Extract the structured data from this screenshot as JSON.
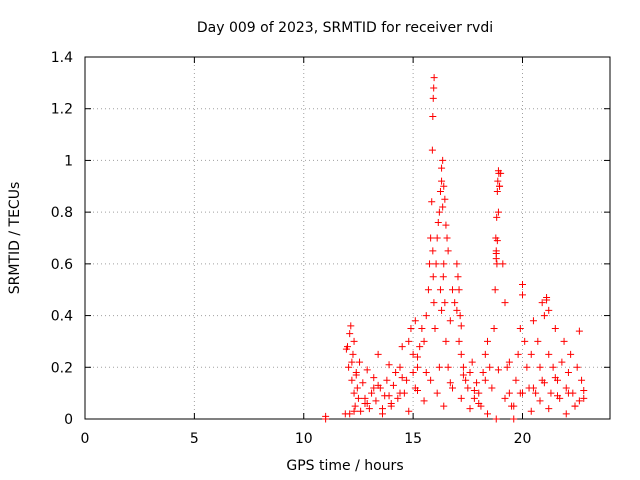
{
  "chart_data": {
    "type": "scatter",
    "title": "Day 009 of 2023, SRMTID for receiver rvdi",
    "xlabel": "GPS time / hours",
    "ylabel": "SRMTID / TECUs",
    "xlim": [
      0,
      24
    ],
    "ylim": [
      0,
      1.4
    ],
    "xticks": [
      0,
      5,
      10,
      15,
      20
    ],
    "yticks": [
      0,
      0.2,
      0.4,
      0.6,
      0.8,
      1.0,
      1.2,
      1.4
    ],
    "xtick_labels": [
      "0",
      "5",
      "10",
      "15",
      "20"
    ],
    "ytick_labels": [
      "0",
      "0.2",
      "0.4",
      "0.6",
      "0.8",
      "1",
      "1.2",
      "1.4"
    ],
    "grid": true,
    "marker": "+",
    "color": "#ff0000",
    "series": [
      {
        "name": "SRMTID",
        "x": [
          11.0,
          11.0,
          11.9,
          11.95,
          12.0,
          12.05,
          12.1,
          12.15,
          12.2,
          12.25,
          12.3,
          12.35,
          12.4,
          12.45,
          12.5,
          12.55,
          12.6,
          12.7,
          12.8,
          12.9,
          13.0,
          13.1,
          13.2,
          13.3,
          13.4,
          13.5,
          13.6,
          13.7,
          13.8,
          13.9,
          14.0,
          14.1,
          14.2,
          14.3,
          14.4,
          14.5,
          14.6,
          14.7,
          14.8,
          14.9,
          15.0,
          15.1,
          15.2,
          15.3,
          15.4,
          15.5,
          15.6,
          15.7,
          15.75,
          15.8,
          15.85,
          15.9,
          15.92,
          15.95,
          16.0,
          16.05,
          16.1,
          16.15,
          16.2,
          16.25,
          16.3,
          16.35,
          16.4,
          16.45,
          16.5,
          16.6,
          16.7,
          16.8,
          16.9,
          17.0,
          17.1,
          17.2,
          17.3,
          17.4,
          17.5,
          17.6,
          17.7,
          17.8,
          17.9,
          18.0,
          18.1,
          18.2,
          18.3,
          18.4,
          18.5,
          18.6,
          18.7,
          18.75,
          18.8,
          18.85,
          18.9,
          18.95,
          19.0,
          19.1,
          19.2,
          19.3,
          19.4,
          19.5,
          19.6,
          19.7,
          19.8,
          19.9,
          20.0,
          20.1,
          20.2,
          20.3,
          20.4,
          20.5,
          20.6,
          20.7,
          20.8,
          20.9,
          21.0,
          21.1,
          21.2,
          21.3,
          21.4,
          21.5,
          21.6,
          21.7,
          21.8,
          21.9,
          22.0,
          22.1,
          22.2,
          22.3,
          22.4,
          22.5,
          22.6,
          22.7,
          22.8,
          12.1,
          12.4,
          12.8,
          13.2,
          13.6,
          14.0,
          14.4,
          14.8,
          15.2,
          15.5,
          15.8,
          16.1,
          16.4,
          16.8,
          17.2,
          17.6,
          18.0,
          18.4,
          18.8,
          19.2,
          19.6,
          20.0,
          20.4,
          20.8,
          21.2,
          21.6,
          22.0,
          22.4,
          22.8,
          12.3,
          12.9,
          13.4,
          13.9,
          14.5,
          15.1,
          15.6,
          16.2,
          16.7,
          17.3,
          17.8,
          18.3,
          18.9,
          19.4,
          19.9,
          20.5,
          21.0,
          21.5,
          22.1,
          22.6,
          15.88,
          15.9,
          15.92,
          15.94,
          15.96,
          16.3,
          16.35,
          16.4,
          16.45,
          16.5,
          16.55,
          16.6,
          16.25,
          16.3,
          16.38,
          18.8,
          18.82,
          18.85,
          18.87,
          18.9,
          18.92,
          18.95,
          18.78,
          18.8,
          18.83,
          17.0,
          17.05,
          17.1,
          17.15,
          17.2,
          20.0,
          20.9,
          21.1,
          21.2,
          12.2,
          12.3,
          15.0,
          15.2
        ],
        "y": [
          0.0,
          0.01,
          0.02,
          0.27,
          0.28,
          0.2,
          0.33,
          0.36,
          0.15,
          0.25,
          0.1,
          0.05,
          0.18,
          0.12,
          0.08,
          0.22,
          0.03,
          0.14,
          0.06,
          0.19,
          0.04,
          0.1,
          0.16,
          0.07,
          0.25,
          0.12,
          0.02,
          0.09,
          0.15,
          0.21,
          0.05,
          0.13,
          0.18,
          0.08,
          0.2,
          0.28,
          0.1,
          0.15,
          0.3,
          0.35,
          0.25,
          0.38,
          0.2,
          0.28,
          0.35,
          0.3,
          0.4,
          0.5,
          0.6,
          0.7,
          0.84,
          0.65,
          0.55,
          0.45,
          0.35,
          0.6,
          0.7,
          0.76,
          0.8,
          0.88,
          0.92,
          0.82,
          0.6,
          0.45,
          0.3,
          0.2,
          0.38,
          0.5,
          0.45,
          0.42,
          0.3,
          0.25,
          0.2,
          0.15,
          0.12,
          0.18,
          0.22,
          0.08,
          0.14,
          0.1,
          0.05,
          0.18,
          0.25,
          0.3,
          0.2,
          0.12,
          0.35,
          0.5,
          0.62,
          0.69,
          0.8,
          0.9,
          0.95,
          0.6,
          0.45,
          0.2,
          0.1,
          0.05,
          0.0,
          0.15,
          0.25,
          0.35,
          0.48,
          0.3,
          0.2,
          0.12,
          0.25,
          0.38,
          0.1,
          0.3,
          0.2,
          0.15,
          0.4,
          0.46,
          0.25,
          0.1,
          0.2,
          0.35,
          0.15,
          0.08,
          0.22,
          0.3,
          0.12,
          0.18,
          0.25,
          0.1,
          0.05,
          0.2,
          0.34,
          0.15,
          0.08,
          0.02,
          0.17,
          0.08,
          0.12,
          0.04,
          0.06,
          0.1,
          0.03,
          0.11,
          0.07,
          0.15,
          0.1,
          0.05,
          0.12,
          0.08,
          0.04,
          0.06,
          0.02,
          0.0,
          0.08,
          0.05,
          0.1,
          0.03,
          0.07,
          0.04,
          0.09,
          0.02,
          0.05,
          0.11,
          0.03,
          0.06,
          0.13,
          0.09,
          0.16,
          0.12,
          0.18,
          0.2,
          0.14,
          0.17,
          0.11,
          0.15,
          0.19,
          0.22,
          0.1,
          0.12,
          0.14,
          0.16,
          0.1,
          0.07,
          1.04,
          1.17,
          1.24,
          1.28,
          1.32,
          0.97,
          1.0,
          0.9,
          0.85,
          0.75,
          0.7,
          0.65,
          0.5,
          0.42,
          0.55,
          0.64,
          0.78,
          0.88,
          0.92,
          0.96,
          0.95,
          0.9,
          0.7,
          0.65,
          0.6,
          0.6,
          0.55,
          0.5,
          0.4,
          0.36,
          0.52,
          0.45,
          0.47,
          0.42,
          0.22,
          0.3,
          0.18,
          0.24
        ]
      }
    ]
  }
}
